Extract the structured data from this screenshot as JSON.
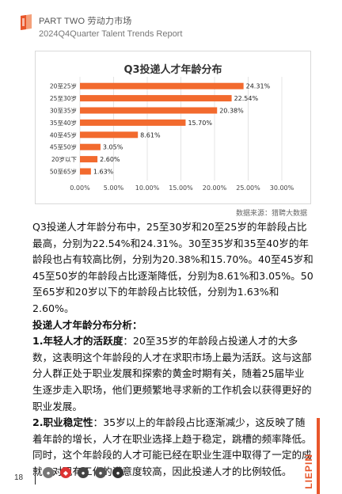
{
  "header": {
    "section": "PART TWO 劳动力市场",
    "subtitle": "2024Q4Quarter Talent Trends Report"
  },
  "colors": {
    "accent": "#f26a2e",
    "brand": "#e8562a"
  },
  "chart_data": {
    "type": "bar",
    "orientation": "horizontal",
    "title": "Q3投递人才年龄分布",
    "categories": [
      "20至25岁",
      "25至30岁",
      "30至35岁",
      "35至40岁",
      "40至45岁",
      "45至50岁",
      "20岁以下",
      "50至65岁"
    ],
    "values": [
      24.31,
      22.54,
      20.38,
      15.7,
      8.61,
      3.05,
      2.6,
      1.63
    ],
    "value_labels": [
      "24.31%",
      "22.54%",
      "20.38%",
      "15.70%",
      "8.61%",
      "3.05%",
      "2.60%",
      "1.63%"
    ],
    "xlim": [
      0,
      30
    ],
    "xticks": [
      "0.00%",
      "5.00%",
      "10.00%",
      "15.00%",
      "20.00%",
      "25.00%",
      "30.00%"
    ],
    "grid": true,
    "color": "#f26a2e"
  },
  "source": "数据来源：猎聘大数据",
  "body": {
    "para1": "Q3投递人才年龄分布中，25至30岁和20至25岁的年龄段占比最高，分别为22.54%和24.31%。30至35岁和35至40岁的年龄段也占有较高比例，分别为20.38%和15.70%。40至45岁和45至50岁的年龄段占比逐渐降低，分别为8.61%和3.05%。50至65岁和20岁以下的年龄段占比较低，分别为1.63%和2.60%。",
    "analysis_heading": "投递人才年龄分布分析：",
    "point1_label": "1.年轻人才的活跃度",
    "point1_text": "：20至35岁的年龄段占投递人才的大多数，这表明这个年龄段的人才在求职市场上最为活跃。这与这部分人群正处于职业发展和探索的黄金时期有关，随着25届毕业生逐步走入职场，他们更频繁地寻求新的工作机会以获得更好的职业发展。",
    "point2_label": "2.职业稳定性",
    "point2_text": "：35岁以上的年龄段占比逐渐减少，这反映了随着年龄的增长，人才在职业选择上趋于稳定，跳槽的频率降低。同时，这个年龄段的人才可能已经在职业生涯中取得了一定的成就，对现有工作的满意度较高，因此投递人才的比例较低。"
  },
  "footer": {
    "page_number": "18",
    "brand": "LIEPIN",
    "icons": [
      "circle-icon-1",
      "circle-icon-2",
      "circle-icon-3",
      "circle-icon-4",
      "circle-icon-5"
    ]
  }
}
